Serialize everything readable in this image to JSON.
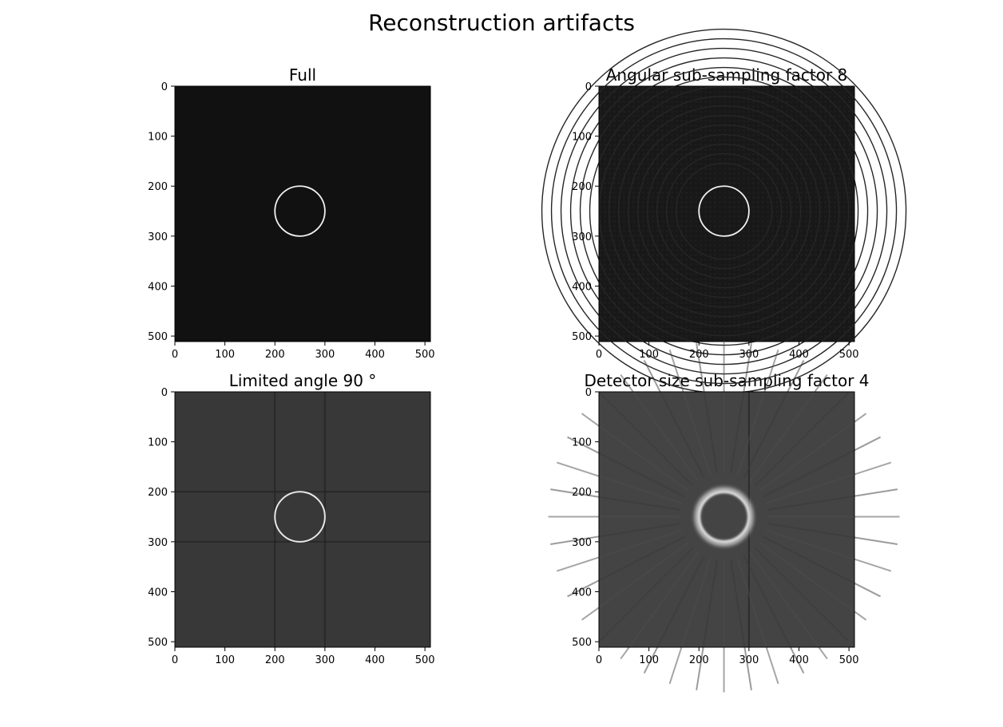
{
  "figure": {
    "title": "Reconstruction artifacts"
  },
  "chart_data": [
    {
      "type": "heatmap",
      "title": "Full",
      "xlim": [
        0,
        511
      ],
      "ylim": [
        511,
        0
      ],
      "xticks": [
        0,
        100,
        200,
        300,
        400,
        500
      ],
      "yticks": [
        0,
        100,
        200,
        300,
        400,
        500
      ],
      "colormap": "gray",
      "background_color": "#111111",
      "feature": {
        "shape": "circle",
        "center": [
          250,
          250
        ],
        "radius": 50,
        "color": "#f0f0f0"
      }
    },
    {
      "type": "heatmap",
      "title": "Angular sub-sampling factor 8",
      "xlim": [
        0,
        511
      ],
      "ylim": [
        511,
        0
      ],
      "xticks": [
        0,
        100,
        200,
        300,
        400,
        500
      ],
      "yticks": [
        0,
        100,
        200,
        300,
        400,
        500
      ],
      "colormap": "gray",
      "background_color": "#181818",
      "feature": {
        "shape": "circle",
        "center": [
          250,
          250
        ],
        "radius": 50,
        "color": "#f0f0f0"
      }
    },
    {
      "type": "heatmap",
      "title": "Limited angle 90$^\\circ$",
      "title_display": "Limited angle 90 °",
      "xlim": [
        0,
        511
      ],
      "ylim": [
        511,
        0
      ],
      "xticks": [
        0,
        100,
        200,
        300,
        400,
        500
      ],
      "yticks": [
        0,
        100,
        200,
        300,
        400,
        500
      ],
      "colormap": "gray",
      "background_color": "#383838",
      "feature": {
        "shape": "circle",
        "center": [
          250,
          250
        ],
        "radius": 50,
        "color": "#f0f0f0"
      },
      "streak_lines": {
        "x": [
          200,
          300
        ],
        "y": [
          200,
          300
        ]
      }
    },
    {
      "type": "heatmap",
      "title": "Detector size sub-sampling factor 4",
      "xlim": [
        0,
        511
      ],
      "ylim": [
        511,
        0
      ],
      "xticks": [
        0,
        100,
        200,
        300,
        400,
        500
      ],
      "yticks": [
        0,
        100,
        200,
        300,
        400,
        500
      ],
      "colormap": "gray",
      "background_color": "#444444",
      "feature": {
        "shape": "circle",
        "center": [
          250,
          250
        ],
        "radius": 50,
        "color": "#e8e8e8"
      },
      "streak_lines": {
        "x": [
          300
        ]
      }
    }
  ]
}
